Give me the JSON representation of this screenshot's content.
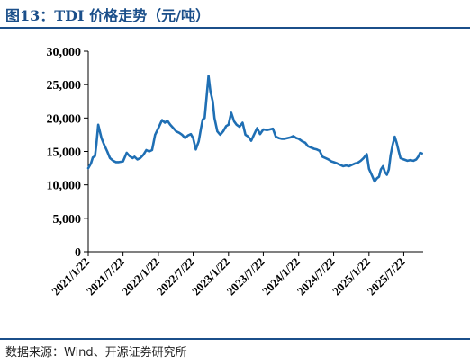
{
  "header": {
    "title": "图13：TDI 价格走势（元/吨）"
  },
  "footer": {
    "source": "数据来源：Wind、开源证券研究所"
  },
  "chart_data": {
    "type": "line",
    "title": "图13：TDI 价格走势（元/吨）",
    "xlabel": "",
    "ylabel": "",
    "ylim": [
      0,
      30000
    ],
    "yticks": [
      0,
      5000,
      10000,
      15000,
      20000,
      25000,
      30000
    ],
    "ytick_labels": [
      "0",
      "5,000",
      "10,000",
      "15,000",
      "20,000",
      "25,000",
      "30,000"
    ],
    "xticks": [
      "2021/1/22",
      "2021/7/22",
      "2022/1/22",
      "2022/7/22",
      "2023/1/22",
      "2023/7/22",
      "2024/1/22",
      "2024/7/22",
      "2025/1/22",
      "2025/7/22"
    ],
    "grid": false,
    "legend": "none",
    "line_color": "#1f6fb4",
    "series": [
      {
        "x": [
          "2021/1/22",
          "2021/2/5",
          "2021/2/15",
          "2021/2/26",
          "2021/3/5",
          "2021/3/15",
          "2021/4/1",
          "2021/4/15",
          "2021/5/1",
          "2021/5/15",
          "2021/6/1",
          "2021/6/15",
          "2021/7/1",
          "2021/7/22",
          "2021/8/10",
          "2021/8/25",
          "2021/9/10",
          "2021/9/20",
          "2021/10/5",
          "2021/10/20",
          "2021/11/5",
          "2021/11/20",
          "2021/12/5",
          "2021/12/20",
          "2022/1/5",
          "2022/1/22",
          "2022/2/10",
          "2022/2/25",
          "2022/3/10",
          "2022/3/25",
          "2022/4/10",
          "2022/4/25",
          "2022/5/10",
          "2022/5/25",
          "2022/6/10",
          "2022/6/25",
          "2022/7/10",
          "2022/7/22",
          "2022/8/5",
          "2022/8/20",
          "2022/9/1",
          "2022/9/10",
          "2022/9/20",
          "2022/10/1",
          "2022/10/10",
          "2022/10/20",
          "2022/11/1",
          "2022/11/10",
          "2022/11/25",
          "2022/12/10",
          "2022/12/25",
          "2023/1/10",
          "2023/1/22",
          "2023/2/5",
          "2023/2/20",
          "2023/3/5",
          "2023/3/20",
          "2023/4/5",
          "2023/4/20",
          "2023/5/5",
          "2023/5/20",
          "2023/6/5",
          "2023/6/20",
          "2023/7/5",
          "2023/7/22",
          "2023/8/10",
          "2023/8/25",
          "2023/9/10",
          "2023/9/25",
          "2023/10/10",
          "2023/10/25",
          "2023/11/10",
          "2023/11/25",
          "2023/12/10",
          "2023/12/25",
          "2024/1/10",
          "2024/1/22",
          "2024/2/10",
          "2024/2/25",
          "2024/3/10",
          "2024/3/25",
          "2024/4/10",
          "2024/4/25",
          "2024/5/10",
          "2024/5/25",
          "2024/6/10",
          "2024/6/25",
          "2024/7/10",
          "2024/7/22",
          "2024/8/10",
          "2024/8/25",
          "2024/9/10",
          "2024/9/25",
          "2024/10/10",
          "2024/10/25",
          "2024/11/10",
          "2024/11/25",
          "2024/12/10",
          "2024/12/25",
          "2025/1/10",
          "2025/1/22",
          "2025/2/5",
          "2025/2/20",
          "2025/3/5",
          "2025/3/15",
          "2025/3/25",
          "2025/4/5",
          "2025/4/15",
          "2025/4/25",
          "2025/5/5",
          "2025/5/15",
          "2025/5/25",
          "2025/6/5",
          "2025/6/15",
          "2025/6/25",
          "2025/7/5",
          "2025/7/22",
          "2025/8/10",
          "2025/8/25",
          "2025/9/10",
          "2025/9/25",
          "2025/10/5",
          "2025/10/15",
          "2025/10/25"
        ],
        "values": [
          12500,
          13200,
          14100,
          14300,
          16000,
          19000,
          17000,
          16000,
          15000,
          14000,
          13600,
          13400,
          13400,
          13500,
          14800,
          14300,
          14000,
          14200,
          13800,
          14000,
          14500,
          15200,
          15000,
          15200,
          17500,
          18500,
          19700,
          19300,
          19600,
          19000,
          18500,
          18000,
          17800,
          17500,
          17000,
          17400,
          17600,
          17000,
          15300,
          16500,
          18500,
          19800,
          20000,
          23500,
          26300,
          24000,
          22500,
          20000,
          18000,
          17500,
          18000,
          18800,
          19000,
          20800,
          19500,
          19000,
          18700,
          19300,
          17500,
          17200,
          16600,
          17600,
          18500,
          17600,
          18300,
          18200,
          18300,
          18400,
          17200,
          17000,
          16900,
          16900,
          17000,
          17100,
          17300,
          17000,
          16900,
          16500,
          16300,
          15800,
          15600,
          15400,
          15300,
          15100,
          14200,
          14000,
          13800,
          13500,
          13400,
          13200,
          13000,
          12800,
          12900,
          12800,
          13000,
          13200,
          13300,
          13600,
          14000,
          14600,
          12400,
          11500,
          10500,
          11000,
          11200,
          12300,
          12800,
          11900,
          11500,
          12300,
          14500,
          16000,
          17200,
          16300,
          15100,
          14000,
          13800,
          13600,
          13700,
          13600,
          13800,
          14200,
          14800,
          14700
        ]
      }
    ]
  }
}
